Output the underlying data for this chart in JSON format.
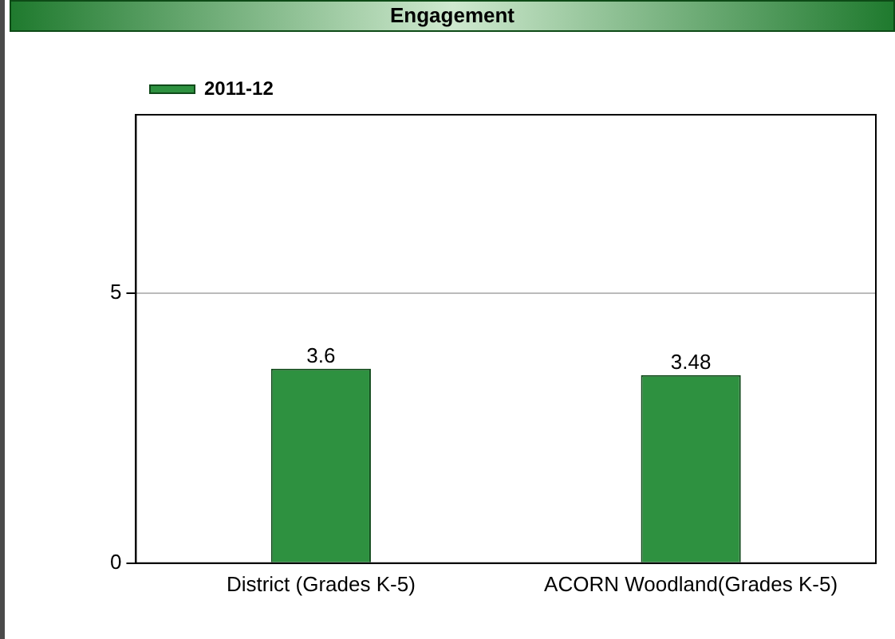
{
  "chart_data": {
    "type": "bar",
    "title": "Engagement",
    "categories": [
      "District (Grades K-5)",
      "ACORN Woodland(Grades K-5)"
    ],
    "series": [
      {
        "name": "2011-12",
        "color": "#2e9140",
        "values": [
          3.6,
          3.48
        ]
      }
    ],
    "ylim": [
      0,
      8.3
    ],
    "yticks": [
      0,
      5
    ],
    "grid": "y",
    "legend": "top left",
    "data_labels": true
  }
}
